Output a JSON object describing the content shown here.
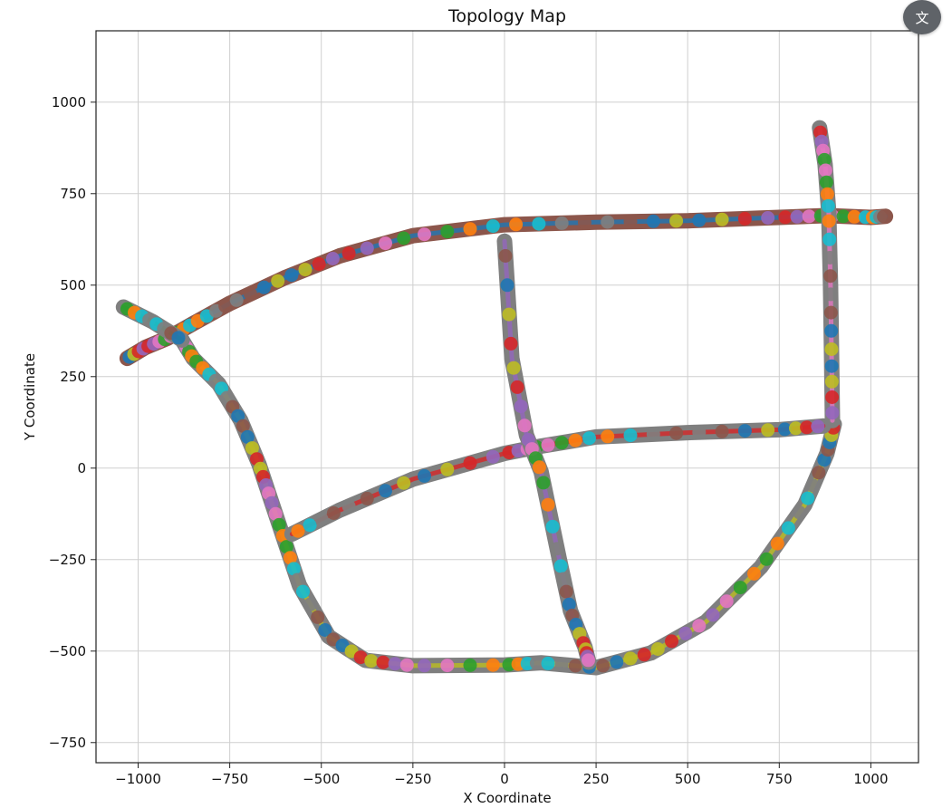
{
  "chart_data": {
    "type": "line",
    "title": "Topology Map",
    "xlabel": "X Coordinate",
    "ylabel": "Y Coordinate",
    "xlim": [
      -1115,
      1130
    ],
    "ylim": [
      -805,
      1195
    ],
    "xticks": [
      -1000,
      -750,
      -500,
      -250,
      0,
      250,
      500,
      750,
      1000
    ],
    "yticks": [
      -750,
      -500,
      -250,
      0,
      250,
      500,
      750,
      1000
    ],
    "xtick_labels": [
      "−1000",
      "−750",
      "−500",
      "−250",
      "0",
      "250",
      "500",
      "750",
      "1000"
    ],
    "ytick_labels": [
      "−750",
      "−500",
      "−250",
      "0",
      "250",
      "500",
      "750",
      "1000"
    ],
    "grid": true,
    "colors": {
      "brown": "#8c564b",
      "blue": "#1f77b4",
      "olive": "#bcbd22",
      "gray": "#7f7f7f",
      "red": "#d62728",
      "purple": "#9467bd",
      "pink": "#e377c2",
      "green": "#2ca02c",
      "orange": "#ff7f0e",
      "cyan": "#17becf"
    },
    "series": [
      {
        "color": "brown",
        "points": [
          [
            -1030,
            300
          ],
          [
            -980,
            330
          ],
          [
            -920,
            355
          ],
          [
            -850,
            395
          ],
          [
            -750,
            450
          ],
          [
            -600,
            520
          ],
          [
            -450,
            580
          ],
          [
            -250,
            635
          ],
          [
            0,
            665
          ],
          [
            250,
            672
          ],
          [
            500,
            676
          ],
          [
            750,
            685
          ],
          [
            880,
            690
          ],
          [
            1000,
            685
          ],
          [
            1040,
            688
          ]
        ]
      },
      {
        "color": "gray",
        "points": [
          [
            -880,
            350
          ],
          [
            -850,
            300
          ],
          [
            -780,
            230
          ],
          [
            -720,
            130
          ],
          [
            -670,
            10
          ],
          [
            -640,
            -80
          ],
          [
            -600,
            -200
          ],
          [
            -560,
            -320
          ],
          [
            -480,
            -460
          ],
          [
            -380,
            -525
          ],
          [
            -250,
            -540
          ],
          [
            0,
            -538
          ],
          [
            100,
            -532
          ],
          [
            250,
            -545
          ],
          [
            400,
            -505
          ],
          [
            550,
            -420
          ],
          [
            700,
            -270
          ],
          [
            820,
            -100
          ],
          [
            880,
            40
          ],
          [
            900,
            120
          ]
        ]
      },
      {
        "color": "gray",
        "points": [
          [
            -580,
            -180
          ],
          [
            -450,
            -115
          ],
          [
            -250,
            -30
          ],
          [
            0,
            40
          ],
          [
            100,
            60
          ],
          [
            250,
            85
          ],
          [
            500,
            97
          ],
          [
            750,
            105
          ],
          [
            870,
            115
          ]
        ]
      },
      {
        "color": "gray",
        "points": [
          [
            0,
            620
          ],
          [
            20,
            300
          ],
          [
            60,
            90
          ],
          [
            100,
            -10
          ],
          [
            150,
            -250
          ],
          [
            180,
            -390
          ],
          [
            220,
            -490
          ],
          [
            230,
            -530
          ]
        ]
      },
      {
        "color": "gray",
        "points": [
          [
            860,
            930
          ],
          [
            875,
            830
          ],
          [
            885,
            700
          ],
          [
            890,
            500
          ],
          [
            893,
            300
          ],
          [
            895,
            130
          ]
        ]
      },
      {
        "color": "gray",
        "points": [
          [
            -1040,
            440
          ],
          [
            -960,
            400
          ],
          [
            -880,
            350
          ]
        ]
      }
    ]
  },
  "ui": {
    "translate_icon": "translate-icon",
    "translate_glyph": "文"
  }
}
